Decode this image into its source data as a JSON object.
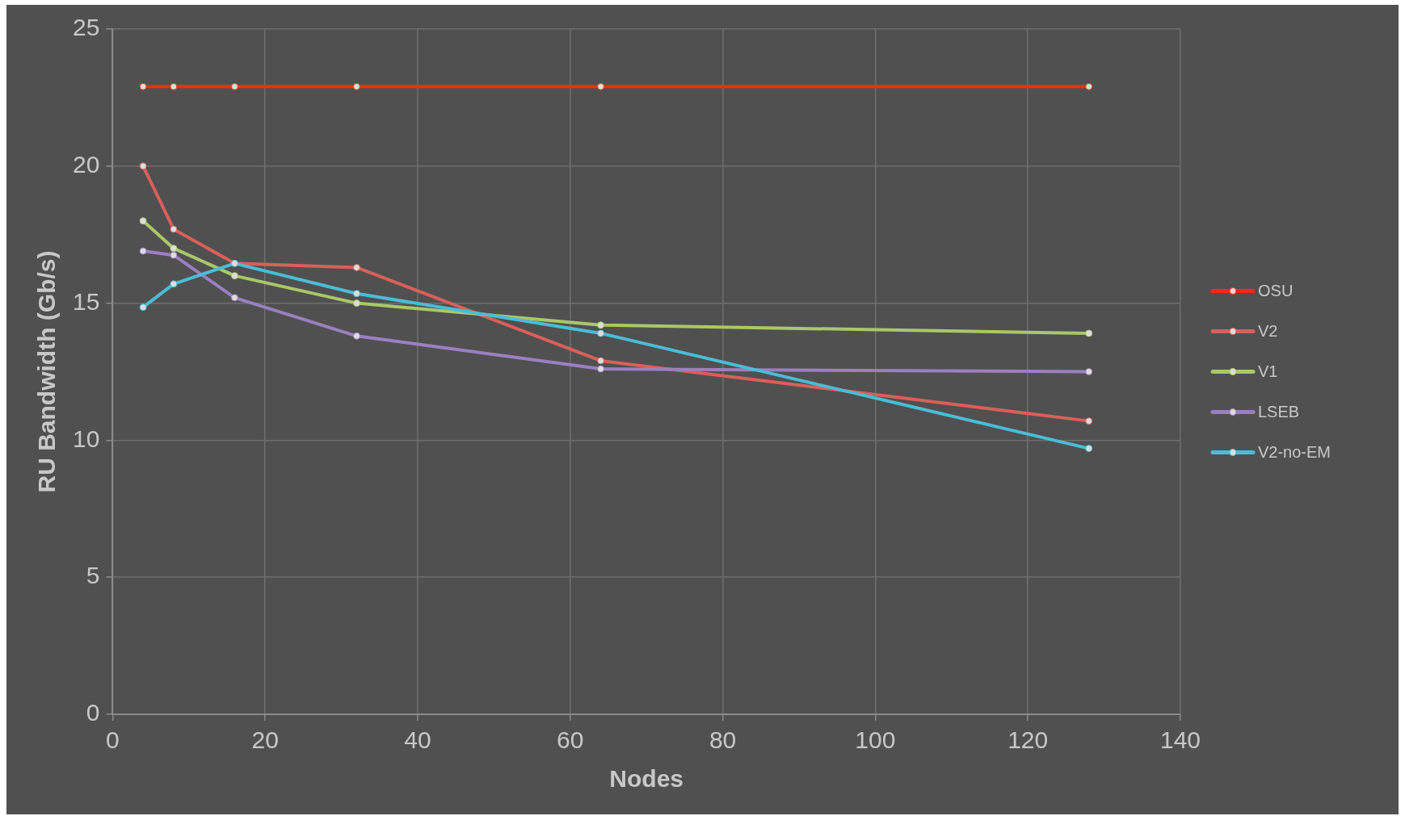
{
  "chart_data": {
    "type": "line",
    "xlabel": "Nodes",
    "ylabel": "RU Bandwidth (Gb/s)",
    "x": [
      4,
      8,
      16,
      32,
      64,
      128
    ],
    "series": [
      {
        "name": "OSU",
        "color": "#ff2a0a",
        "values": [
          22.9,
          22.9,
          22.9,
          22.9,
          22.9,
          22.9
        ]
      },
      {
        "name": "V2",
        "color": "#d9605a",
        "values": [
          20.0,
          17.7,
          16.45,
          16.3,
          12.9,
          10.7
        ]
      },
      {
        "name": "V1",
        "color": "#a8c868",
        "values": [
          18.0,
          17.0,
          16.0,
          15.0,
          14.2,
          13.9
        ]
      },
      {
        "name": "LSEB",
        "color": "#9b7fc0",
        "values": [
          16.9,
          16.75,
          15.2,
          13.8,
          12.6,
          12.5
        ]
      },
      {
        "name": "V2-no-EM",
        "color": "#4bbcd6",
        "values": [
          14.85,
          15.7,
          16.45,
          15.35,
          13.9,
          9.7
        ]
      }
    ],
    "xlim": [
      0,
      140
    ],
    "xticks": [
      0,
      20,
      40,
      60,
      80,
      100,
      120,
      140
    ],
    "ylim": [
      0,
      25
    ],
    "yticks": [
      0,
      5,
      10,
      15,
      20,
      25
    ],
    "grid": true,
    "legend": "right",
    "marker": "circle",
    "line_style": "solid"
  }
}
